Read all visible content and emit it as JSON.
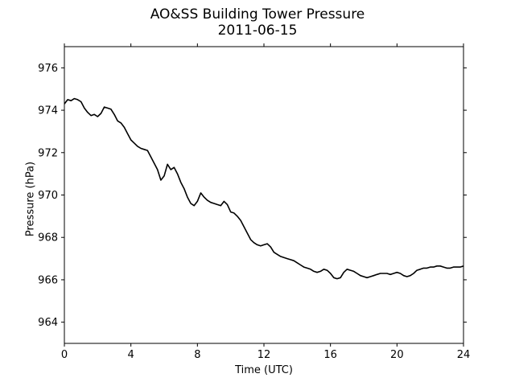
{
  "chart_data": {
    "type": "line",
    "title": "AO&SS Building Tower Pressure",
    "subtitle": "2011-06-15",
    "xlabel": "Time (UTC)",
    "ylabel": "Pressure (hPa)",
    "xlim": [
      0,
      24
    ],
    "ylim": [
      963,
      977
    ],
    "xticks": [
      0,
      4,
      8,
      12,
      16,
      20,
      24
    ],
    "yticks": [
      964,
      966,
      968,
      970,
      972,
      974,
      976
    ],
    "grid": false,
    "line_color": "#000000",
    "series": [
      {
        "x": [
          0,
          0.2,
          0.4,
          0.6,
          0.8,
          1.0,
          1.2,
          1.4,
          1.6,
          1.8,
          2.0,
          2.2,
          2.4,
          2.6,
          2.8,
          3.0,
          3.2,
          3.4,
          3.6,
          3.8,
          4.0,
          4.2,
          4.4,
          4.6,
          4.8,
          5.0,
          5.2,
          5.4,
          5.6,
          5.8,
          6.0,
          6.2,
          6.4,
          6.6,
          6.8,
          7.0,
          7.2,
          7.4,
          7.6,
          7.8,
          8.0,
          8.2,
          8.4,
          8.6,
          8.8,
          9.0,
          9.2,
          9.4,
          9.6,
          9.8,
          10.0,
          10.2,
          10.4,
          10.6,
          10.8,
          11.0,
          11.2,
          11.4,
          11.6,
          11.8,
          12.0,
          12.2,
          12.4,
          12.6,
          12.8,
          13.0,
          13.2,
          13.4,
          13.6,
          13.8,
          14.0,
          14.2,
          14.4,
          14.6,
          14.8,
          15.0,
          15.2,
          15.4,
          15.6,
          15.8,
          16.0,
          16.2,
          16.4,
          16.6,
          16.8,
          17.0,
          17.2,
          17.4,
          17.6,
          17.8,
          18.0,
          18.2,
          18.4,
          18.6,
          18.8,
          19.0,
          19.2,
          19.4,
          19.6,
          19.8,
          20.0,
          20.2,
          20.4,
          20.6,
          20.8,
          21.0,
          21.2,
          21.4,
          21.6,
          21.8,
          22.0,
          22.2,
          22.4,
          22.6,
          22.8,
          23.0,
          23.2,
          23.4,
          23.6,
          23.8,
          24.0
        ],
        "values": [
          974.3,
          974.5,
          974.45,
          974.55,
          974.5,
          974.4,
          974.1,
          973.9,
          973.75,
          973.8,
          973.7,
          973.85,
          974.15,
          974.1,
          974.05,
          973.8,
          973.5,
          973.4,
          973.2,
          972.9,
          972.6,
          972.45,
          972.3,
          972.2,
          972.15,
          972.1,
          971.8,
          971.5,
          971.2,
          970.7,
          970.9,
          971.45,
          971.2,
          971.3,
          971.0,
          970.6,
          970.3,
          969.9,
          969.6,
          969.5,
          969.7,
          970.1,
          969.9,
          969.75,
          969.65,
          969.6,
          969.55,
          969.5,
          969.7,
          969.55,
          969.2,
          969.15,
          969.0,
          968.8,
          968.5,
          968.2,
          967.9,
          967.75,
          967.65,
          967.6,
          967.65,
          967.7,
          967.55,
          967.3,
          967.2,
          967.1,
          967.05,
          967.0,
          966.95,
          966.9,
          966.8,
          966.7,
          966.6,
          966.55,
          966.5,
          966.4,
          966.35,
          966.4,
          966.5,
          966.45,
          966.3,
          966.1,
          966.05,
          966.1,
          966.35,
          966.5,
          966.45,
          966.4,
          966.3,
          966.2,
          966.15,
          966.1,
          966.15,
          966.2,
          966.25,
          966.3,
          966.3,
          966.3,
          966.25,
          966.3,
          966.35,
          966.3,
          966.2,
          966.15,
          966.2,
          966.3,
          966.45,
          966.5,
          966.55,
          966.55,
          966.6,
          966.6,
          966.65,
          966.65,
          966.6,
          966.55,
          966.55,
          966.6,
          966.6,
          966.6,
          966.65
        ]
      }
    ]
  }
}
